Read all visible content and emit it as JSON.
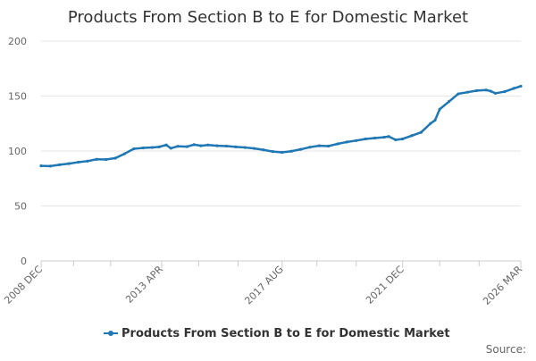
{
  "chart_data": {
    "type": "line",
    "title": "Products From Section B to E for Domestic Market",
    "xlabel": "",
    "ylabel": "",
    "ylim": [
      0,
      200
    ],
    "yticks": [
      0,
      50,
      100,
      150,
      200
    ],
    "xlim": [
      "2008-12",
      "2026-03"
    ],
    "x_tick_labels": [
      {
        "date": "2008-12",
        "label": "2008 DEC"
      },
      {
        "date": "2013-04",
        "label": "2013 APR"
      },
      {
        "date": "2017-08",
        "label": "2017 AUG"
      },
      {
        "date": "2021-12",
        "label": "2021 DEC"
      },
      {
        "date": "2026-03",
        "label": "2026 MAR"
      }
    ],
    "x_minor_ticks": [
      "2010-02",
      "2011-06",
      "2014-08",
      "2016-01",
      "2018-11",
      "2020-04",
      "2023-04",
      "2024-09"
    ],
    "grid": {
      "y": true,
      "x": false
    },
    "legend": {
      "position": "bottom",
      "entries": [
        "Products From Section B to E for Domestic Market"
      ]
    },
    "source_label": "Source:",
    "colors": {
      "series": "#1f77b4",
      "grid": "#e6e6e6",
      "axis": "#cccccc"
    },
    "series": [
      {
        "name": "Products From Section B to E for Domestic Market",
        "points": [
          [
            "2008-12",
            86.5
          ],
          [
            "2009-04",
            86.3
          ],
          [
            "2009-08",
            87.5
          ],
          [
            "2009-12",
            88.5
          ],
          [
            "2010-04",
            89.8
          ],
          [
            "2010-08",
            90.8
          ],
          [
            "2010-12",
            92.5
          ],
          [
            "2011-04",
            92.3
          ],
          [
            "2011-08",
            93.5
          ],
          [
            "2011-12",
            97.5
          ],
          [
            "2012-04",
            102.0
          ],
          [
            "2012-08",
            102.8
          ],
          [
            "2012-12",
            103.2
          ],
          [
            "2013-03",
            103.8
          ],
          [
            "2013-06",
            105.5
          ],
          [
            "2013-08",
            102.5
          ],
          [
            "2013-11",
            104.3
          ],
          [
            "2014-03",
            104.0
          ],
          [
            "2014-06",
            105.8
          ],
          [
            "2014-09",
            104.8
          ],
          [
            "2014-12",
            105.5
          ],
          [
            "2015-04",
            104.8
          ],
          [
            "2015-08",
            104.5
          ],
          [
            "2015-12",
            103.8
          ],
          [
            "2016-04",
            103.2
          ],
          [
            "2016-08",
            102.3
          ],
          [
            "2016-12",
            101.0
          ],
          [
            "2017-04",
            99.5
          ],
          [
            "2017-08",
            98.8
          ],
          [
            "2017-12",
            99.8
          ],
          [
            "2018-04",
            101.5
          ],
          [
            "2018-08",
            103.5
          ],
          [
            "2018-12",
            104.8
          ],
          [
            "2019-04",
            104.5
          ],
          [
            "2019-08",
            106.5
          ],
          [
            "2019-12",
            108.2
          ],
          [
            "2020-04",
            109.5
          ],
          [
            "2020-08",
            111.0
          ],
          [
            "2020-12",
            111.8
          ],
          [
            "2021-04",
            112.5
          ],
          [
            "2021-06",
            113.2
          ],
          [
            "2021-09",
            110.2
          ],
          [
            "2021-12",
            111.0
          ],
          [
            "2022-04",
            114.0
          ],
          [
            "2022-08",
            117.0
          ],
          [
            "2022-12",
            125.0
          ],
          [
            "2023-02",
            128.0
          ],
          [
            "2023-04",
            138.0
          ],
          [
            "2023-08",
            145.0
          ],
          [
            "2023-12",
            152.0
          ],
          [
            "2024-04",
            153.5
          ],
          [
            "2024-08",
            155.0
          ],
          [
            "2024-12",
            155.5
          ],
          [
            "2025-02",
            154.5
          ],
          [
            "2025-04",
            152.5
          ],
          [
            "2025-08",
            154.0
          ],
          [
            "2025-12",
            157.0
          ],
          [
            "2026-03",
            159.0
          ]
        ]
      }
    ]
  }
}
